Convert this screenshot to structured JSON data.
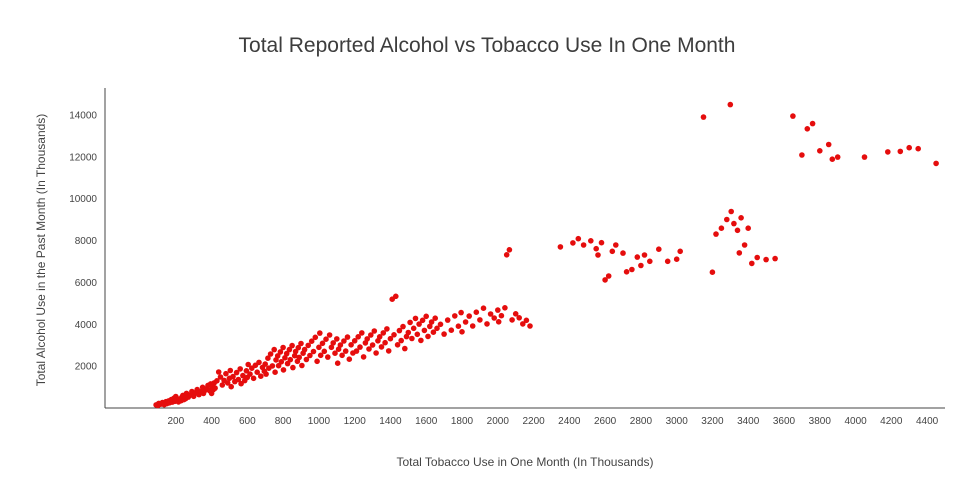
{
  "chart_data": {
    "type": "scatter",
    "title": "Total Reported Alcohol vs Tobacco Use In One Month",
    "xlabel": "Total Tobacco Use in One Month (In Thousands)",
    "ylabel": "Total Alcohol Use in the Past Month (In Thousands)",
    "xlim": [
      0,
      4500
    ],
    "ylim": [
      0,
      15000
    ],
    "grid": false,
    "legend": "none",
    "marker_color": "#e50d0d",
    "x_ticks": [
      200,
      400,
      600,
      800,
      1000,
      1200,
      1400,
      1600,
      1800,
      2000,
      2200,
      2400,
      2600,
      2800,
      3000,
      3200,
      3400,
      3600,
      3800,
      4000,
      4200,
      4400
    ],
    "y_ticks": [
      2000,
      4000,
      6000,
      8000,
      10000,
      12000,
      14000
    ],
    "points": [
      [
        90,
        150
      ],
      [
        100,
        120
      ],
      [
        105,
        220
      ],
      [
        115,
        180
      ],
      [
        125,
        260
      ],
      [
        135,
        160
      ],
      [
        145,
        300
      ],
      [
        150,
        210
      ],
      [
        160,
        340
      ],
      [
        165,
        250
      ],
      [
        175,
        400
      ],
      [
        180,
        280
      ],
      [
        190,
        470
      ],
      [
        195,
        320
      ],
      [
        200,
        550
      ],
      [
        205,
        380
      ],
      [
        215,
        290
      ],
      [
        220,
        430
      ],
      [
        230,
        350
      ],
      [
        235,
        520
      ],
      [
        240,
        600
      ],
      [
        245,
        400
      ],
      [
        255,
        450
      ],
      [
        260,
        700
      ],
      [
        270,
        520
      ],
      [
        280,
        620
      ],
      [
        290,
        790
      ],
      [
        300,
        560
      ],
      [
        310,
        720
      ],
      [
        320,
        880
      ],
      [
        330,
        640
      ],
      [
        340,
        780
      ],
      [
        350,
        990
      ],
      [
        355,
        700
      ],
      [
        365,
        850
      ],
      [
        375,
        940
      ],
      [
        380,
        1080
      ],
      [
        390,
        820
      ],
      [
        395,
        1150
      ],
      [
        400,
        700
      ],
      [
        405,
        1000
      ],
      [
        410,
        880
      ],
      [
        415,
        1200
      ],
      [
        420,
        950
      ],
      [
        430,
        1300
      ],
      [
        440,
        1720
      ],
      [
        450,
        1480
      ],
      [
        460,
        1100
      ],
      [
        470,
        1320
      ],
      [
        480,
        1640
      ],
      [
        490,
        1200
      ],
      [
        500,
        1420
      ],
      [
        505,
        1790
      ],
      [
        510,
        1020
      ],
      [
        520,
        1500
      ],
      [
        530,
        1260
      ],
      [
        540,
        1690
      ],
      [
        550,
        1360
      ],
      [
        560,
        1870
      ],
      [
        565,
        1160
      ],
      [
        575,
        1550
      ],
      [
        585,
        1310
      ],
      [
        595,
        1780
      ],
      [
        600,
        1460
      ],
      [
        605,
        2080
      ],
      [
        615,
        1620
      ],
      [
        625,
        1900
      ],
      [
        635,
        1420
      ],
      [
        645,
        2040
      ],
      [
        655,
        1710
      ],
      [
        665,
        2180
      ],
      [
        675,
        1520
      ],
      [
        685,
        1940
      ],
      [
        695,
        1760
      ],
      [
        700,
        2100
      ],
      [
        705,
        1620
      ],
      [
        715,
        2380
      ],
      [
        720,
        1900
      ],
      [
        730,
        2580
      ],
      [
        740,
        2010
      ],
      [
        750,
        2790
      ],
      [
        755,
        1710
      ],
      [
        760,
        2300
      ],
      [
        770,
        2490
      ],
      [
        775,
        2020
      ],
      [
        785,
        2680
      ],
      [
        790,
        2210
      ],
      [
        800,
        2890
      ],
      [
        802,
        1820
      ],
      [
        810,
        2400
      ],
      [
        820,
        2600
      ],
      [
        825,
        2120
      ],
      [
        835,
        2790
      ],
      [
        840,
        2310
      ],
      [
        850,
        2980
      ],
      [
        855,
        1930
      ],
      [
        865,
        2500
      ],
      [
        870,
        2700
      ],
      [
        880,
        2230
      ],
      [
        885,
        2880
      ],
      [
        890,
        2420
      ],
      [
        900,
        3080
      ],
      [
        905,
        2030
      ],
      [
        912,
        2620
      ],
      [
        920,
        2790
      ],
      [
        930,
        2320
      ],
      [
        940,
        2990
      ],
      [
        950,
        2510
      ],
      [
        960,
        3190
      ],
      [
        970,
        2700
      ],
      [
        980,
        3380
      ],
      [
        990,
        2230
      ],
      [
        1000,
        2900
      ],
      [
        1005,
        3580
      ],
      [
        1010,
        2520
      ],
      [
        1020,
        3090
      ],
      [
        1030,
        2710
      ],
      [
        1040,
        3290
      ],
      [
        1050,
        2430
      ],
      [
        1060,
        3490
      ],
      [
        1070,
        2900
      ],
      [
        1080,
        3110
      ],
      [
        1090,
        2620
      ],
      [
        1100,
        3300
      ],
      [
        1105,
        2140
      ],
      [
        1110,
        2810
      ],
      [
        1120,
        3010
      ],
      [
        1130,
        2520
      ],
      [
        1140,
        3200
      ],
      [
        1150,
        2720
      ],
      [
        1160,
        3390
      ],
      [
        1170,
        2330
      ],
      [
        1180,
        3020
      ],
      [
        1190,
        2630
      ],
      [
        1200,
        3210
      ],
      [
        1210,
        2720
      ],
      [
        1220,
        3400
      ],
      [
        1230,
        2910
      ],
      [
        1240,
        3590
      ],
      [
        1250,
        2440
      ],
      [
        1260,
        3110
      ],
      [
        1270,
        3300
      ],
      [
        1280,
        2820
      ],
      [
        1290,
        3490
      ],
      [
        1300,
        3010
      ],
      [
        1310,
        3680
      ],
      [
        1320,
        2630
      ],
      [
        1330,
        3210
      ],
      [
        1340,
        3400
      ],
      [
        1350,
        2920
      ],
      [
        1360,
        3590
      ],
      [
        1370,
        3120
      ],
      [
        1380,
        3780
      ],
      [
        1390,
        2730
      ],
      [
        1400,
        3310
      ],
      [
        1410,
        5200
      ],
      [
        1420,
        3500
      ],
      [
        1430,
        5340
      ],
      [
        1440,
        3020
      ],
      [
        1450,
        3700
      ],
      [
        1460,
        3220
      ],
      [
        1470,
        3890
      ],
      [
        1480,
        2840
      ],
      [
        1490,
        3410
      ],
      [
        1500,
        3610
      ],
      [
        1510,
        4090
      ],
      [
        1520,
        3320
      ],
      [
        1530,
        3810
      ],
      [
        1540,
        4280
      ],
      [
        1550,
        3520
      ],
      [
        1560,
        4010
      ],
      [
        1570,
        3230
      ],
      [
        1580,
        4190
      ],
      [
        1590,
        3710
      ],
      [
        1600,
        4380
      ],
      [
        1610,
        3420
      ],
      [
        1620,
        3900
      ],
      [
        1630,
        4110
      ],
      [
        1640,
        3620
      ],
      [
        1650,
        4290
      ],
      [
        1660,
        3810
      ],
      [
        1680,
        4000
      ],
      [
        1700,
        3530
      ],
      [
        1720,
        4200
      ],
      [
        1740,
        3720
      ],
      [
        1760,
        4400
      ],
      [
        1780,
        3910
      ],
      [
        1795,
        4560
      ],
      [
        1800,
        3640
      ],
      [
        1820,
        4110
      ],
      [
        1840,
        4390
      ],
      [
        1860,
        3920
      ],
      [
        1880,
        4580
      ],
      [
        1900,
        4210
      ],
      [
        1920,
        4770
      ],
      [
        1940,
        4020
      ],
      [
        1960,
        4490
      ],
      [
        1980,
        4300
      ],
      [
        2000,
        4680
      ],
      [
        2005,
        4120
      ],
      [
        2020,
        4410
      ],
      [
        2040,
        4790
      ],
      [
        2050,
        7320
      ],
      [
        2065,
        7560
      ],
      [
        2080,
        4210
      ],
      [
        2100,
        4500
      ],
      [
        2120,
        4310
      ],
      [
        2140,
        4020
      ],
      [
        2160,
        4190
      ],
      [
        2180,
        3920
      ],
      [
        2350,
        7700
      ],
      [
        2420,
        7890
      ],
      [
        2450,
        8090
      ],
      [
        2480,
        7790
      ],
      [
        2520,
        7990
      ],
      [
        2550,
        7610
      ],
      [
        2560,
        7310
      ],
      [
        2580,
        7900
      ],
      [
        2600,
        6120
      ],
      [
        2620,
        6310
      ],
      [
        2640,
        7490
      ],
      [
        2660,
        7790
      ],
      [
        2700,
        7400
      ],
      [
        2720,
        6510
      ],
      [
        2750,
        6620
      ],
      [
        2780,
        7210
      ],
      [
        2800,
        6810
      ],
      [
        2820,
        7310
      ],
      [
        2850,
        7010
      ],
      [
        2900,
        7590
      ],
      [
        2950,
        7010
      ],
      [
        3000,
        7110
      ],
      [
        3020,
        7490
      ],
      [
        3150,
        13900
      ],
      [
        3200,
        6490
      ],
      [
        3220,
        8310
      ],
      [
        3250,
        8590
      ],
      [
        3280,
        9010
      ],
      [
        3300,
        14500
      ],
      [
        3305,
        9390
      ],
      [
        3320,
        8810
      ],
      [
        3340,
        8490
      ],
      [
        3350,
        7410
      ],
      [
        3360,
        9090
      ],
      [
        3380,
        7790
      ],
      [
        3400,
        8590
      ],
      [
        3420,
        6910
      ],
      [
        3450,
        7190
      ],
      [
        3500,
        7090
      ],
      [
        3550,
        7140
      ],
      [
        3650,
        13950
      ],
      [
        3700,
        12090
      ],
      [
        3730,
        13340
      ],
      [
        3760,
        13590
      ],
      [
        3800,
        12290
      ],
      [
        3850,
        12590
      ],
      [
        3870,
        11890
      ],
      [
        3900,
        11990
      ],
      [
        4050,
        11990
      ],
      [
        4180,
        12240
      ],
      [
        4250,
        12260
      ],
      [
        4300,
        12440
      ],
      [
        4350,
        12390
      ],
      [
        4450,
        11690
      ]
    ]
  }
}
